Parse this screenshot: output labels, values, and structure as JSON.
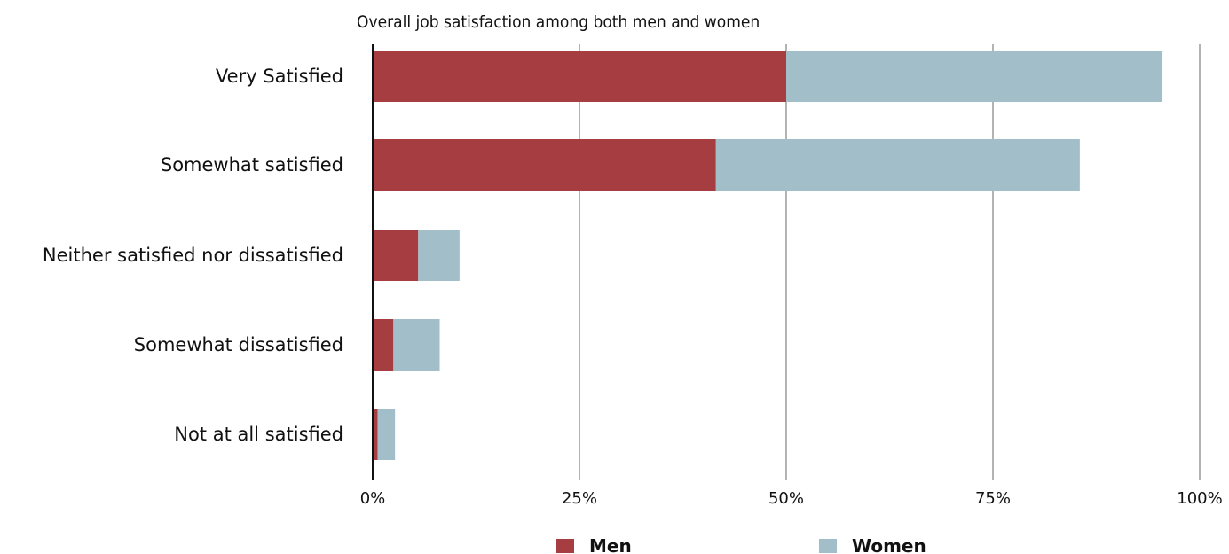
{
  "chart_data": {
    "type": "bar",
    "orientation": "horizontal",
    "stacked": true,
    "title": "Overall job satisfaction among both men and women",
    "categories": [
      "Very Satisfied",
      "Somewhat satisfied",
      "Neither satisfied nor dissatisfied",
      "Somewhat dissatisfied",
      "Not at all satisfied"
    ],
    "series": [
      {
        "name": "Men",
        "color": "#a63d40",
        "values": [
          50,
          41.5,
          5.5,
          2.5,
          0.6
        ]
      },
      {
        "name": "Women",
        "color": "#a2bec8",
        "values": [
          45.5,
          44,
          5,
          5.6,
          2.1
        ]
      }
    ],
    "xlim": [
      0,
      100
    ],
    "ticks": [
      "0%",
      "25%",
      "50%",
      "75%",
      "100%"
    ],
    "tick_values": [
      0,
      25,
      50,
      75,
      100
    ],
    "grid": true,
    "legend_position": "bottom"
  }
}
